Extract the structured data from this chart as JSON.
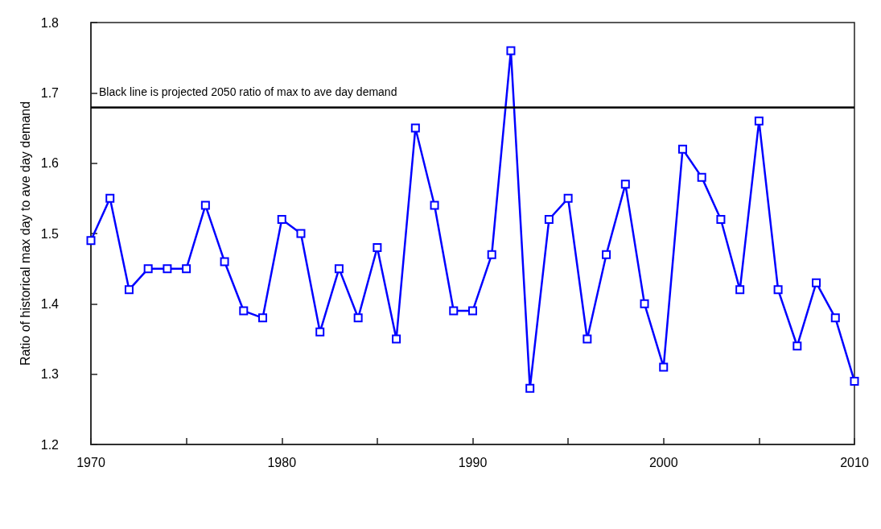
{
  "chart_data": {
    "type": "line",
    "ylabel": "Ratio of historical max day to ave day demand",
    "x": [
      1970,
      1971,
      1972,
      1973,
      1974,
      1975,
      1976,
      1977,
      1978,
      1979,
      1980,
      1981,
      1982,
      1983,
      1984,
      1985,
      1986,
      1987,
      1988,
      1989,
      1990,
      1991,
      1992,
      1993,
      1994,
      1995,
      1996,
      1997,
      1998,
      1999,
      2000,
      2001,
      2002,
      2003,
      2004,
      2005,
      2006,
      2007,
      2008,
      2009,
      2010
    ],
    "series": [
      {
        "color": "#0000ff",
        "values": [
          1.49,
          1.55,
          1.42,
          1.45,
          1.45,
          1.45,
          1.54,
          1.46,
          1.39,
          1.38,
          1.52,
          1.5,
          1.36,
          1.45,
          1.38,
          1.48,
          1.35,
          1.65,
          1.54,
          1.39,
          1.39,
          1.47,
          1.76,
          1.28,
          1.52,
          1.55,
          1.35,
          1.47,
          1.57,
          1.4,
          1.31,
          1.62,
          1.58,
          1.52,
          1.42,
          1.66,
          1.42,
          1.34,
          1.43,
          1.38,
          1.29
        ]
      }
    ],
    "xlim": [
      1970,
      2010
    ],
    "xticks": [
      1970,
      {
        "value": 1975,
        "label": null
      },
      1980,
      {
        "value": 1985,
        "label": null
      },
      1990,
      {
        "value": 1995,
        "label": null
      },
      2000,
      {
        "value": 2005,
        "label": null
      },
      2010
    ],
    "ylim": [
      1.2,
      1.8
    ],
    "yticks": [
      1.2,
      1.3,
      1.4,
      1.5,
      1.6,
      1.7,
      1.8
    ],
    "ref_lines": [
      {
        "axis": "y",
        "value": 1.68,
        "label": "Black line is projected 2050 ratio of max to ave day demand",
        "color": "#000000",
        "line_style": "solid"
      }
    ],
    "marker": "square",
    "line_style": "solid",
    "grid": false
  }
}
